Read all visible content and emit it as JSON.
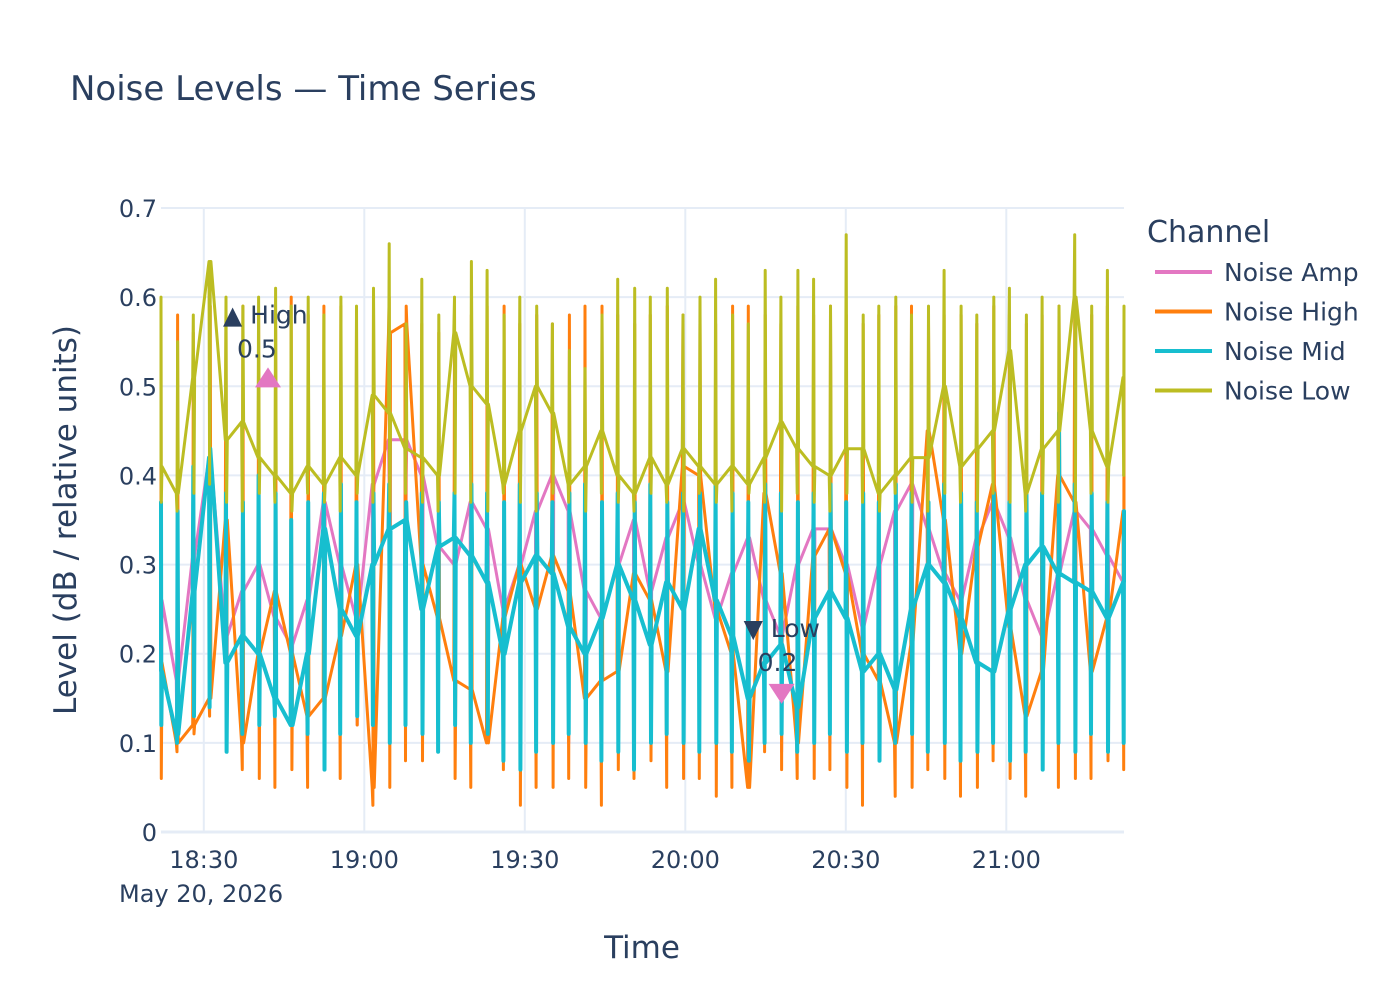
{
  "chart_data": {
    "type": "line",
    "title": "Noise Levels — Time Series",
    "xlabel": "Time",
    "ylabel": "Level (dB / relative units)",
    "x_start": "2026-05-20 18:22",
    "x_end": "2026-05-20 21:22",
    "x_date_label": "May 20, 2026",
    "xticks": [
      "18:30",
      "19:00",
      "19:30",
      "20:00",
      "20:30",
      "21:00"
    ],
    "ylim": [
      0,
      0.7
    ],
    "yticks": [
      0,
      0.1,
      0.2,
      0.3,
      0.4,
      0.5,
      0.6,
      0.7
    ],
    "ytick_labels": [
      "0",
      "0.1",
      "0.2",
      "0.3",
      "0.4",
      "0.5",
      "0.6",
      "0.7"
    ],
    "grid": true,
    "legend": {
      "title": "Channel",
      "position": "right"
    },
    "series": [
      {
        "name": "Noise Amp",
        "color": "#e377c2",
        "line_width": 3,
        "trend": [
          0.26,
          0.17,
          0.31,
          0.42,
          0.22,
          0.27,
          0.3,
          0.24,
          0.21,
          0.26,
          0.37,
          0.3,
          0.24,
          0.39,
          0.44,
          0.44,
          0.4,
          0.32,
          0.3,
          0.37,
          0.34,
          0.25,
          0.3,
          0.36,
          0.4,
          0.36,
          0.27,
          0.24,
          0.3,
          0.35,
          0.27,
          0.33,
          0.37,
          0.3,
          0.24,
          0.29,
          0.33,
          0.26,
          0.22,
          0.3,
          0.34,
          0.34,
          0.3,
          0.23,
          0.3,
          0.36,
          0.39,
          0.34,
          0.29,
          0.26,
          0.33,
          0.37,
          0.33,
          0.26,
          0.22,
          0.29,
          0.36,
          0.34,
          0.31,
          0.28
        ],
        "low": [
          0.13,
          0.1,
          0.13,
          0.14,
          0.11,
          0.12,
          0.1,
          0.12,
          0.12,
          0.1,
          0.11,
          0.13,
          0.12,
          0.14,
          0.13,
          0.12,
          0.11,
          0.12,
          0.1,
          0.11,
          0.12,
          0.09,
          0.1,
          0.11,
          0.12,
          0.1,
          0.11,
          0.09,
          0.1,
          0.12,
          0.1,
          0.11,
          0.12,
          0.1,
          0.12,
          0.11,
          0.1,
          0.12,
          0.09,
          0.11,
          0.12,
          0.1,
          0.11,
          0.12,
          0.1,
          0.11,
          0.12,
          0.1,
          0.11,
          0.09,
          0.12,
          0.1,
          0.11,
          0.12,
          0.1,
          0.11,
          0.1,
          0.12,
          0.11,
          0.12
        ],
        "high": [
          0.37,
          0.36,
          0.4,
          0.43,
          0.38,
          0.37,
          0.4,
          0.38,
          0.4,
          0.37,
          0.38,
          0.39,
          0.4,
          0.38,
          0.39,
          0.4,
          0.37,
          0.38,
          0.4,
          0.39,
          0.38,
          0.37,
          0.39,
          0.38,
          0.4,
          0.38,
          0.39,
          0.37,
          0.38,
          0.4,
          0.39,
          0.37,
          0.38,
          0.4,
          0.39,
          0.38,
          0.37,
          0.39,
          0.38,
          0.4,
          0.38,
          0.39,
          0.37,
          0.38,
          0.4,
          0.39,
          0.38,
          0.37,
          0.39,
          0.38,
          0.4,
          0.38,
          0.37,
          0.39,
          0.38,
          0.4,
          0.39,
          0.38,
          0.37,
          0.36
        ]
      },
      {
        "name": "Noise High",
        "color": "#ff7f0e",
        "line_width": 3,
        "trend": [
          0.19,
          0.1,
          0.12,
          0.15,
          0.35,
          0.1,
          0.2,
          0.27,
          0.2,
          0.13,
          0.15,
          0.22,
          0.3,
          0.05,
          0.56,
          0.57,
          0.3,
          0.24,
          0.17,
          0.16,
          0.1,
          0.24,
          0.3,
          0.25,
          0.31,
          0.27,
          0.15,
          0.17,
          0.18,
          0.29,
          0.26,
          0.18,
          0.41,
          0.4,
          0.25,
          0.2,
          0.05,
          0.38,
          0.29,
          0.1,
          0.31,
          0.34,
          0.29,
          0.2,
          0.17,
          0.1,
          0.21,
          0.45,
          0.35,
          0.2,
          0.32,
          0.39,
          0.23,
          0.13,
          0.18,
          0.4,
          0.37,
          0.18,
          0.24,
          0.36
        ],
        "low": [
          0.06,
          0.09,
          0.11,
          0.13,
          0.1,
          0.07,
          0.06,
          0.05,
          0.07,
          0.05,
          0.09,
          0.06,
          0.12,
          0.03,
          0.05,
          0.08,
          0.08,
          0.09,
          0.06,
          0.05,
          0.11,
          0.07,
          0.03,
          0.05,
          0.05,
          0.06,
          0.05,
          0.03,
          0.07,
          0.06,
          0.08,
          0.05,
          0.06,
          0.06,
          0.04,
          0.05,
          0.05,
          0.09,
          0.07,
          0.06,
          0.06,
          0.07,
          0.05,
          0.03,
          0.08,
          0.04,
          0.05,
          0.07,
          0.06,
          0.04,
          0.05,
          0.08,
          0.06,
          0.04,
          0.07,
          0.05,
          0.06,
          0.06,
          0.08,
          0.07
        ],
        "high": [
          0.59,
          0.58,
          0.56,
          0.59,
          0.58,
          0.59,
          0.58,
          0.57,
          0.6,
          0.58,
          0.59,
          0.59,
          0.57,
          0.59,
          0.6,
          0.59,
          0.57,
          0.56,
          0.56,
          0.58,
          0.59,
          0.59,
          0.57,
          0.58,
          0.57,
          0.58,
          0.59,
          0.59,
          0.58,
          0.57,
          0.58,
          0.59,
          0.58,
          0.58,
          0.57,
          0.59,
          0.59,
          0.58,
          0.57,
          0.59,
          0.58,
          0.59,
          0.58,
          0.57,
          0.58,
          0.59,
          0.59,
          0.57,
          0.58,
          0.58,
          0.57,
          0.59,
          0.58,
          0.57,
          0.58,
          0.59,
          0.58,
          0.58,
          0.59,
          0.58
        ]
      },
      {
        "name": "Noise Mid",
        "color": "#17becf",
        "line_width": 4,
        "trend": [
          0.18,
          0.11,
          0.27,
          0.42,
          0.19,
          0.22,
          0.2,
          0.15,
          0.12,
          0.2,
          0.34,
          0.25,
          0.22,
          0.3,
          0.34,
          0.35,
          0.25,
          0.32,
          0.33,
          0.31,
          0.28,
          0.2,
          0.28,
          0.31,
          0.29,
          0.23,
          0.2,
          0.24,
          0.3,
          0.26,
          0.21,
          0.28,
          0.25,
          0.34,
          0.26,
          0.22,
          0.15,
          0.19,
          0.21,
          0.14,
          0.24,
          0.27,
          0.24,
          0.18,
          0.2,
          0.16,
          0.25,
          0.3,
          0.28,
          0.24,
          0.19,
          0.18,
          0.25,
          0.3,
          0.32,
          0.29,
          0.28,
          0.27,
          0.24,
          0.28
        ],
        "low": [
          0.12,
          0.1,
          0.13,
          0.14,
          0.09,
          0.11,
          0.12,
          0.13,
          0.12,
          0.11,
          0.07,
          0.11,
          0.13,
          0.12,
          0.1,
          0.12,
          0.11,
          0.09,
          0.12,
          0.1,
          0.11,
          0.08,
          0.07,
          0.09,
          0.1,
          0.11,
          0.1,
          0.08,
          0.09,
          0.07,
          0.1,
          0.11,
          0.1,
          0.09,
          0.1,
          0.09,
          0.08,
          0.1,
          0.11,
          0.09,
          0.1,
          0.11,
          0.09,
          0.1,
          0.08,
          0.1,
          0.11,
          0.09,
          0.1,
          0.08,
          0.09,
          0.1,
          0.08,
          0.09,
          0.07,
          0.1,
          0.09,
          0.11,
          0.09,
          0.1
        ],
        "high": [
          0.37,
          0.36,
          0.41,
          0.43,
          0.38,
          0.37,
          0.4,
          0.38,
          0.35,
          0.37,
          0.38,
          0.39,
          0.37,
          0.38,
          0.39,
          0.37,
          0.38,
          0.37,
          0.38,
          0.39,
          0.38,
          0.37,
          0.39,
          0.38,
          0.37,
          0.38,
          0.39,
          0.37,
          0.38,
          0.37,
          0.39,
          0.37,
          0.38,
          0.38,
          0.39,
          0.38,
          0.37,
          0.39,
          0.38,
          0.37,
          0.38,
          0.39,
          0.37,
          0.38,
          0.37,
          0.39,
          0.38,
          0.37,
          0.39,
          0.38,
          0.37,
          0.38,
          0.37,
          0.39,
          0.38,
          0.47,
          0.39,
          0.38,
          0.37,
          0.36
        ]
      },
      {
        "name": "Noise Low",
        "color": "#bcbd22",
        "line_width": 3,
        "trend": [
          0.41,
          0.38,
          0.51,
          0.64,
          0.44,
          0.46,
          0.42,
          0.4,
          0.38,
          0.41,
          0.39,
          0.42,
          0.4,
          0.49,
          0.47,
          0.43,
          0.42,
          0.4,
          0.56,
          0.5,
          0.48,
          0.39,
          0.45,
          0.5,
          0.47,
          0.39,
          0.41,
          0.45,
          0.4,
          0.38,
          0.42,
          0.39,
          0.43,
          0.41,
          0.39,
          0.41,
          0.39,
          0.42,
          0.46,
          0.43,
          0.41,
          0.4,
          0.43,
          0.43,
          0.38,
          0.4,
          0.42,
          0.42,
          0.5,
          0.41,
          0.43,
          0.45,
          0.54,
          0.38,
          0.43,
          0.45,
          0.6,
          0.45,
          0.41,
          0.51
        ],
        "low": [
          0.37,
          0.36,
          0.38,
          0.39,
          0.37,
          0.36,
          0.38,
          0.37,
          0.36,
          0.38,
          0.37,
          0.36,
          0.38,
          0.37,
          0.36,
          0.38,
          0.37,
          0.36,
          0.38,
          0.37,
          0.36,
          0.38,
          0.37,
          0.36,
          0.38,
          0.37,
          0.36,
          0.38,
          0.37,
          0.36,
          0.38,
          0.37,
          0.36,
          0.38,
          0.37,
          0.36,
          0.38,
          0.37,
          0.36,
          0.38,
          0.37,
          0.36,
          0.38,
          0.37,
          0.36,
          0.38,
          0.37,
          0.36,
          0.38,
          0.37,
          0.36,
          0.38,
          0.37,
          0.36,
          0.38,
          0.37,
          0.36,
          0.38,
          0.37,
          0.4
        ],
        "high": [
          0.6,
          0.55,
          0.58,
          0.64,
          0.6,
          0.59,
          0.6,
          0.61,
          0.59,
          0.6,
          0.58,
          0.6,
          0.59,
          0.61,
          0.66,
          0.57,
          0.62,
          0.58,
          0.6,
          0.64,
          0.63,
          0.58,
          0.6,
          0.59,
          0.57,
          0.54,
          0.52,
          0.58,
          0.62,
          0.61,
          0.6,
          0.61,
          0.58,
          0.6,
          0.62,
          0.58,
          0.57,
          0.63,
          0.6,
          0.63,
          0.62,
          0.59,
          0.67,
          0.58,
          0.59,
          0.6,
          0.58,
          0.59,
          0.63,
          0.59,
          0.58,
          0.6,
          0.61,
          0.58,
          0.6,
          0.59,
          0.67,
          0.59,
          0.63,
          0.59
        ]
      }
    ],
    "annotations": [
      {
        "label": "▲ High",
        "value": "0.5",
        "x": "2026-05-20 18:42",
        "y": 0.51,
        "marker": "triangle-up",
        "color": "#e377c2"
      },
      {
        "label": "▼ Low",
        "value": "0.2",
        "x": "2026-05-20 20:18",
        "y": 0.155,
        "marker": "triangle-down",
        "color": "#e377c2"
      }
    ]
  }
}
